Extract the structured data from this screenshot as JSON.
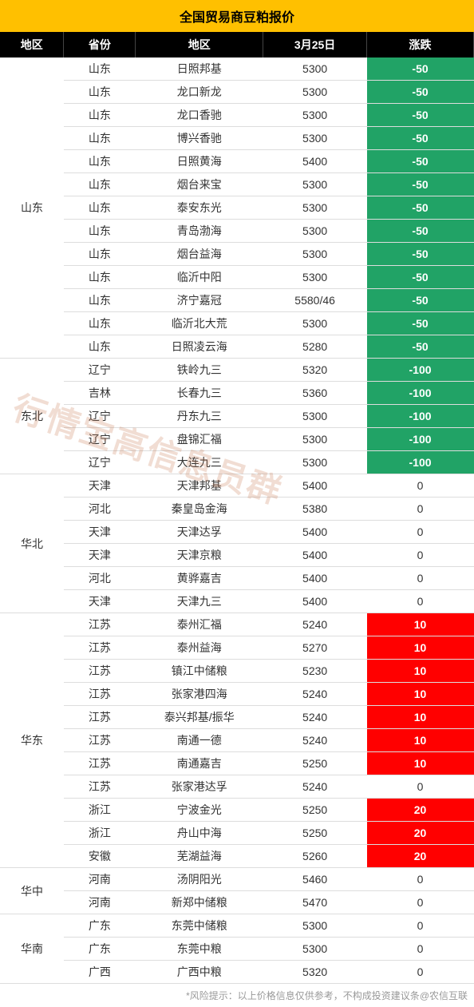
{
  "title": "全国贸易商豆粕报价",
  "headers": [
    "地区",
    "省份",
    "地区",
    "3月25日",
    "涨跌"
  ],
  "footer": "*风险提示：以上价格信息仅供参考，不构成投资建议条@农信互联",
  "watermark": "行情宝高信息员群",
  "colors": {
    "title_bg": "#ffc000",
    "header_bg": "#000000",
    "neg_bg": "#21a366",
    "pos_bg": "#ff0000"
  },
  "groups": [
    {
      "region": "山东",
      "rows": [
        {
          "prov": "山东",
          "loc": "日照邦基",
          "price": "5300",
          "chg": "-50",
          "cls": "neg"
        },
        {
          "prov": "山东",
          "loc": "龙口新龙",
          "price": "5300",
          "chg": "-50",
          "cls": "neg"
        },
        {
          "prov": "山东",
          "loc": "龙口香驰",
          "price": "5300",
          "chg": "-50",
          "cls": "neg"
        },
        {
          "prov": "山东",
          "loc": "博兴香驰",
          "price": "5300",
          "chg": "-50",
          "cls": "neg"
        },
        {
          "prov": "山东",
          "loc": "日照黄海",
          "price": "5400",
          "chg": "-50",
          "cls": "neg"
        },
        {
          "prov": "山东",
          "loc": "烟台来宝",
          "price": "5300",
          "chg": "-50",
          "cls": "neg"
        },
        {
          "prov": "山东",
          "loc": "泰安东光",
          "price": "5300",
          "chg": "-50",
          "cls": "neg"
        },
        {
          "prov": "山东",
          "loc": "青岛渤海",
          "price": "5300",
          "chg": "-50",
          "cls": "neg"
        },
        {
          "prov": "山东",
          "loc": "烟台益海",
          "price": "5300",
          "chg": "-50",
          "cls": "neg"
        },
        {
          "prov": "山东",
          "loc": "临沂中阳",
          "price": "5300",
          "chg": "-50",
          "cls": "neg"
        },
        {
          "prov": "山东",
          "loc": "济宁嘉冠",
          "price": "5580/46",
          "chg": "-50",
          "cls": "neg"
        },
        {
          "prov": "山东",
          "loc": "临沂北大荒",
          "price": "5300",
          "chg": "-50",
          "cls": "neg"
        },
        {
          "prov": "山东",
          "loc": "日照凌云海",
          "price": "5280",
          "chg": "-50",
          "cls": "neg"
        }
      ]
    },
    {
      "region": "东北",
      "rows": [
        {
          "prov": "辽宁",
          "loc": "铁岭九三",
          "price": "5320",
          "chg": "-100",
          "cls": "neg"
        },
        {
          "prov": "吉林",
          "loc": "长春九三",
          "price": "5360",
          "chg": "-100",
          "cls": "neg"
        },
        {
          "prov": "辽宁",
          "loc": "丹东九三",
          "price": "5300",
          "chg": "-100",
          "cls": "neg"
        },
        {
          "prov": "辽宁",
          "loc": "盘锦汇福",
          "price": "5300",
          "chg": "-100",
          "cls": "neg"
        },
        {
          "prov": "辽宁",
          "loc": "大连九三",
          "price": "5300",
          "chg": "-100",
          "cls": "neg"
        }
      ]
    },
    {
      "region": "华北",
      "rows": [
        {
          "prov": "天津",
          "loc": "天津邦基",
          "price": "5400",
          "chg": "0",
          "cls": "zero"
        },
        {
          "prov": "河北",
          "loc": "秦皇岛金海",
          "price": "5380",
          "chg": "0",
          "cls": "zero"
        },
        {
          "prov": "天津",
          "loc": "天津达孚",
          "price": "5400",
          "chg": "0",
          "cls": "zero"
        },
        {
          "prov": "天津",
          "loc": "天津京粮",
          "price": "5400",
          "chg": "0",
          "cls": "zero"
        },
        {
          "prov": "河北",
          "loc": "黄骅嘉吉",
          "price": "5400",
          "chg": "0",
          "cls": "zero"
        },
        {
          "prov": "天津",
          "loc": "天津九三",
          "price": "5400",
          "chg": "0",
          "cls": "zero"
        }
      ]
    },
    {
      "region": "华东",
      "rows": [
        {
          "prov": "江苏",
          "loc": "泰州汇福",
          "price": "5240",
          "chg": "10",
          "cls": "pos"
        },
        {
          "prov": "江苏",
          "loc": "泰州益海",
          "price": "5270",
          "chg": "10",
          "cls": "pos"
        },
        {
          "prov": "江苏",
          "loc": "镇江中储粮",
          "price": "5230",
          "chg": "10",
          "cls": "pos"
        },
        {
          "prov": "江苏",
          "loc": "张家港四海",
          "price": "5240",
          "chg": "10",
          "cls": "pos"
        },
        {
          "prov": "江苏",
          "loc": "泰兴邦基/振华",
          "price": "5240",
          "chg": "10",
          "cls": "pos"
        },
        {
          "prov": "江苏",
          "loc": "南通一德",
          "price": "5240",
          "chg": "10",
          "cls": "pos"
        },
        {
          "prov": "江苏",
          "loc": "南通嘉吉",
          "price": "5250",
          "chg": "10",
          "cls": "pos"
        },
        {
          "prov": "江苏",
          "loc": "张家港达孚",
          "price": "5240",
          "chg": "0",
          "cls": "zero"
        },
        {
          "prov": "浙江",
          "loc": "宁波金光",
          "price": "5250",
          "chg": "20",
          "cls": "pos"
        },
        {
          "prov": "浙江",
          "loc": "舟山中海",
          "price": "5250",
          "chg": "20",
          "cls": "pos"
        },
        {
          "prov": "安徽",
          "loc": "芜湖益海",
          "price": "5260",
          "chg": "20",
          "cls": "pos"
        }
      ]
    },
    {
      "region": "华中",
      "rows": [
        {
          "prov": "河南",
          "loc": "汤阴阳光",
          "price": "5460",
          "chg": "0",
          "cls": "zero"
        },
        {
          "prov": "河南",
          "loc": "新郑中储粮",
          "price": "5470",
          "chg": "0",
          "cls": "zero"
        }
      ]
    },
    {
      "region": "华南",
      "rows": [
        {
          "prov": "广东",
          "loc": "东莞中储粮",
          "price": "5300",
          "chg": "0",
          "cls": "zero"
        },
        {
          "prov": "广东",
          "loc": "东莞中粮",
          "price": "5300",
          "chg": "0",
          "cls": "zero"
        },
        {
          "prov": "广西",
          "loc": "广西中粮",
          "price": "5320",
          "chg": "0",
          "cls": "zero"
        }
      ]
    }
  ]
}
